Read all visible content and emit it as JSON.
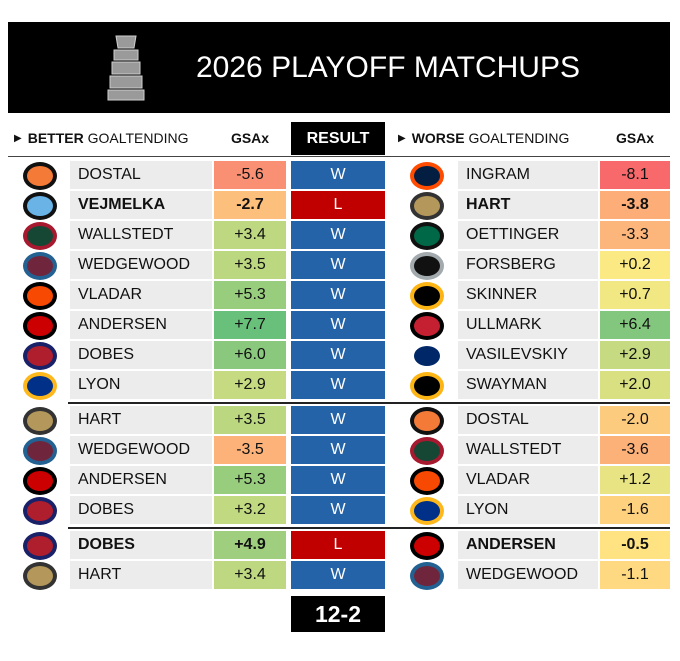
{
  "header": {
    "title": "2026 PLAYOFF MATCHUPS"
  },
  "columns": {
    "left_strong": "BETTER",
    "left_rest": "GOALTENDING",
    "left_gsax": "GSAx",
    "result": "RESULT",
    "right_strong": "WORSE",
    "right_rest": "GOALTENDING",
    "right_gsax": "GSAx"
  },
  "rounds": [
    [
      {
        "left_goalie": "DOSTAL",
        "left_gsax": "-5.6",
        "result": "W",
        "right_goalie": "INGRAM",
        "right_gsax": "-8.1"
      },
      {
        "left_goalie": "VEJMELKA",
        "left_gsax": "-2.7",
        "result": "L",
        "right_goalie": "HART",
        "right_gsax": "-3.8"
      },
      {
        "left_goalie": "WALLSTEDT",
        "left_gsax": "+3.4",
        "result": "W",
        "right_goalie": "OETTINGER",
        "right_gsax": "-3.3"
      },
      {
        "left_goalie": "WEDGEWOOD",
        "left_gsax": "+3.5",
        "result": "W",
        "right_goalie": "FORSBERG",
        "right_gsax": "+0.2"
      },
      {
        "left_goalie": "VLADAR",
        "left_gsax": "+5.3",
        "result": "W",
        "right_goalie": "SKINNER",
        "right_gsax": "+0.7"
      },
      {
        "left_goalie": "ANDERSEN",
        "left_gsax": "+7.7",
        "result": "W",
        "right_goalie": "ULLMARK",
        "right_gsax": "+6.4"
      },
      {
        "left_goalie": "DOBES",
        "left_gsax": "+6.0",
        "result": "W",
        "right_goalie": "VASILEVSKIY",
        "right_gsax": "+2.9"
      },
      {
        "left_goalie": "LYON",
        "left_gsax": "+2.9",
        "result": "W",
        "right_goalie": "SWAYMAN",
        "right_gsax": "+2.0"
      }
    ],
    [
      {
        "left_goalie": "HART",
        "left_gsax": "+3.5",
        "result": "W",
        "right_goalie": "DOSTAL",
        "right_gsax": "-2.0"
      },
      {
        "left_goalie": "WEDGEWOOD",
        "left_gsax": "-3.5",
        "result": "W",
        "right_goalie": "WALLSTEDT",
        "right_gsax": "-3.6"
      },
      {
        "left_goalie": "ANDERSEN",
        "left_gsax": "+5.3",
        "result": "W",
        "right_goalie": "VLADAR",
        "right_gsax": "+1.2"
      },
      {
        "left_goalie": "DOBES",
        "left_gsax": "+3.2",
        "result": "W",
        "right_goalie": "LYON",
        "right_gsax": "-1.6"
      }
    ],
    [
      {
        "left_goalie": "DOBES",
        "left_gsax": "+4.9",
        "result": "L",
        "right_goalie": "ANDERSEN",
        "right_gsax": "-0.5"
      },
      {
        "left_goalie": "HART",
        "left_gsax": "+3.4",
        "result": "W",
        "right_goalie": "WEDGEWOOD",
        "right_gsax": "-1.1"
      }
    ]
  ],
  "total": "12-2"
}
